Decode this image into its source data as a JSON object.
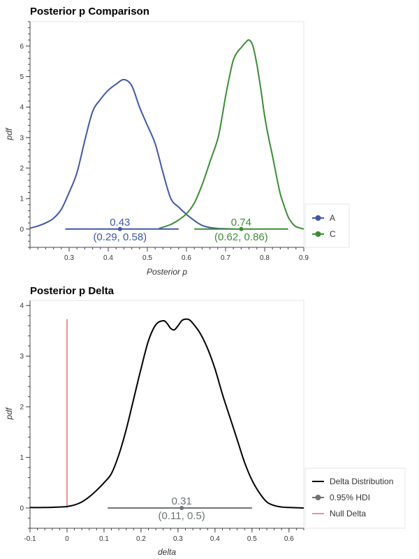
{
  "chart_data": [
    {
      "type": "line",
      "title": "Posterior p Comparison",
      "xlabel": "Posterior p",
      "ylabel": "pdf",
      "xlim": [
        0.2,
        0.9
      ],
      "ylim": [
        -0.6,
        6.8
      ],
      "xticks": [
        "0.3",
        "0.4",
        "0.5",
        "0.6",
        "0.7",
        "0.8",
        "0.9"
      ],
      "yticks": [
        "0",
        "1",
        "2",
        "3",
        "4",
        "5",
        "6"
      ],
      "legend": [
        "A",
        "C"
      ],
      "legend_position": "bottom-right outside",
      "colors": {
        "A": "#3f57a8",
        "C": "#3b8c34"
      },
      "series": [
        {
          "name": "A",
          "x": [
            0.2,
            0.22,
            0.24,
            0.26,
            0.28,
            0.3,
            0.32,
            0.34,
            0.36,
            0.38,
            0.4,
            0.42,
            0.44,
            0.46,
            0.48,
            0.5,
            0.52,
            0.54,
            0.56,
            0.58,
            0.6,
            0.62,
            0.64,
            0.66,
            0.68,
            0.7,
            0.72
          ],
          "y": [
            0.03,
            0.1,
            0.2,
            0.35,
            0.65,
            1.2,
            1.85,
            2.9,
            3.85,
            4.25,
            4.55,
            4.75,
            4.9,
            4.7,
            4.0,
            3.4,
            2.8,
            1.85,
            1.0,
            0.72,
            0.48,
            0.28,
            0.12,
            0.05,
            0.02,
            0.01,
            0.0
          ]
        },
        {
          "name": "C",
          "x": [
            0.53,
            0.56,
            0.58,
            0.6,
            0.62,
            0.64,
            0.66,
            0.68,
            0.69,
            0.7,
            0.71,
            0.72,
            0.73,
            0.74,
            0.75,
            0.76,
            0.77,
            0.78,
            0.79,
            0.8,
            0.81,
            0.82,
            0.83,
            0.84,
            0.85,
            0.86,
            0.87,
            0.88,
            0.9
          ],
          "y": [
            0.02,
            0.15,
            0.3,
            0.5,
            0.85,
            1.45,
            2.2,
            2.95,
            3.6,
            4.35,
            5.0,
            5.55,
            5.8,
            5.95,
            6.1,
            6.2,
            6.0,
            5.4,
            4.6,
            3.7,
            3.0,
            2.4,
            1.75,
            1.15,
            0.75,
            0.4,
            0.2,
            0.08,
            0.0
          ]
        }
      ],
      "hdi": [
        {
          "name": "A",
          "mean": 0.43,
          "low": 0.29,
          "high": 0.58,
          "mean_label": "0.43",
          "interval_label": "(0.29, 0.58)"
        },
        {
          "name": "C",
          "mean": 0.74,
          "low": 0.62,
          "high": 0.86,
          "mean_label": "0.74",
          "interval_label": "(0.62, 0.86)"
        }
      ]
    },
    {
      "type": "line",
      "title": "Posterior p Delta",
      "xlabel": "delta",
      "ylabel": "pdf",
      "xlim": [
        -0.1,
        0.64
      ],
      "ylim": [
        -0.4,
        4.1
      ],
      "xticks": [
        "-0.1",
        "0",
        "0.1",
        "0.2",
        "0.3",
        "0.4",
        "0.5",
        "0.6"
      ],
      "yticks": [
        "0",
        "1",
        "2",
        "3",
        "4"
      ],
      "legend": [
        "Delta Distribution",
        "0.95% HDI",
        "Null Delta"
      ],
      "legend_position": "bottom-right outside",
      "colors": {
        "delta": "#000000",
        "hdi": "#6e7375",
        "null": "#d62728"
      },
      "series": [
        {
          "name": "Delta Distribution",
          "x": [
            -0.1,
            -0.06,
            -0.02,
            0.0,
            0.02,
            0.04,
            0.06,
            0.08,
            0.1,
            0.12,
            0.14,
            0.16,
            0.18,
            0.2,
            0.22,
            0.24,
            0.26,
            0.27,
            0.28,
            0.29,
            0.3,
            0.31,
            0.32,
            0.33,
            0.34,
            0.36,
            0.38,
            0.4,
            0.42,
            0.44,
            0.46,
            0.48,
            0.5,
            0.52,
            0.54,
            0.56,
            0.58,
            0.6,
            0.64
          ],
          "y": [
            0.01,
            0.01,
            0.02,
            0.03,
            0.06,
            0.12,
            0.22,
            0.35,
            0.5,
            0.68,
            1.05,
            1.55,
            2.15,
            2.75,
            3.3,
            3.62,
            3.7,
            3.65,
            3.55,
            3.52,
            3.6,
            3.7,
            3.73,
            3.72,
            3.65,
            3.45,
            3.15,
            2.75,
            2.25,
            1.8,
            1.35,
            0.9,
            0.55,
            0.3,
            0.12,
            0.05,
            0.02,
            0.01,
            0.0
          ]
        }
      ],
      "hdi": {
        "mean": 0.31,
        "low": 0.11,
        "high": 0.5,
        "mean_label": "0.31",
        "interval_label": "(0.11, 0.5)"
      },
      "null_delta": {
        "x": 0,
        "y_top": 3.73
      }
    }
  ]
}
